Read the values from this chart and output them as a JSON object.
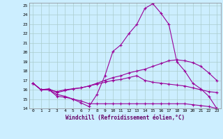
{
  "xlabel": "Windchill (Refroidissement éolien,°C)",
  "x": [
    0,
    1,
    2,
    3,
    4,
    5,
    6,
    7,
    8,
    9,
    10,
    11,
    12,
    13,
    14,
    15,
    16,
    17,
    18,
    19,
    20,
    21,
    22,
    23
  ],
  "line1": [
    16.7,
    16.0,
    16.0,
    15.3,
    15.2,
    15.0,
    14.6,
    14.2,
    15.5,
    17.5,
    20.1,
    20.8,
    22.0,
    23.0,
    24.7,
    25.2,
    24.2,
    23.0,
    19.0,
    18.0,
    16.7,
    16.1,
    15.3,
    14.0
  ],
  "line2": [
    16.7,
    16.0,
    16.1,
    15.7,
    15.9,
    16.1,
    16.2,
    16.4,
    16.7,
    17.0,
    17.3,
    17.5,
    17.8,
    18.0,
    18.2,
    18.5,
    18.8,
    19.1,
    19.2,
    19.1,
    18.9,
    18.5,
    17.8,
    17.0
  ],
  "line3": [
    16.7,
    16.0,
    16.0,
    15.8,
    16.0,
    16.1,
    16.2,
    16.4,
    16.6,
    16.8,
    17.0,
    17.1,
    17.3,
    17.5,
    17.0,
    16.8,
    16.7,
    16.6,
    16.5,
    16.4,
    16.2,
    16.0,
    15.8,
    15.7
  ],
  "line4": [
    16.7,
    16.0,
    16.0,
    15.5,
    15.3,
    15.0,
    14.8,
    14.5,
    14.5,
    14.5,
    14.5,
    14.5,
    14.5,
    14.5,
    14.5,
    14.5,
    14.5,
    14.5,
    14.5,
    14.5,
    14.4,
    14.3,
    14.2,
    14.0
  ],
  "line_color": "#990099",
  "bg_color": "#cceeff",
  "grid_color": "#aacccc",
  "ylim": [
    14,
    25
  ],
  "xlim": [
    -0.5,
    23.5
  ]
}
